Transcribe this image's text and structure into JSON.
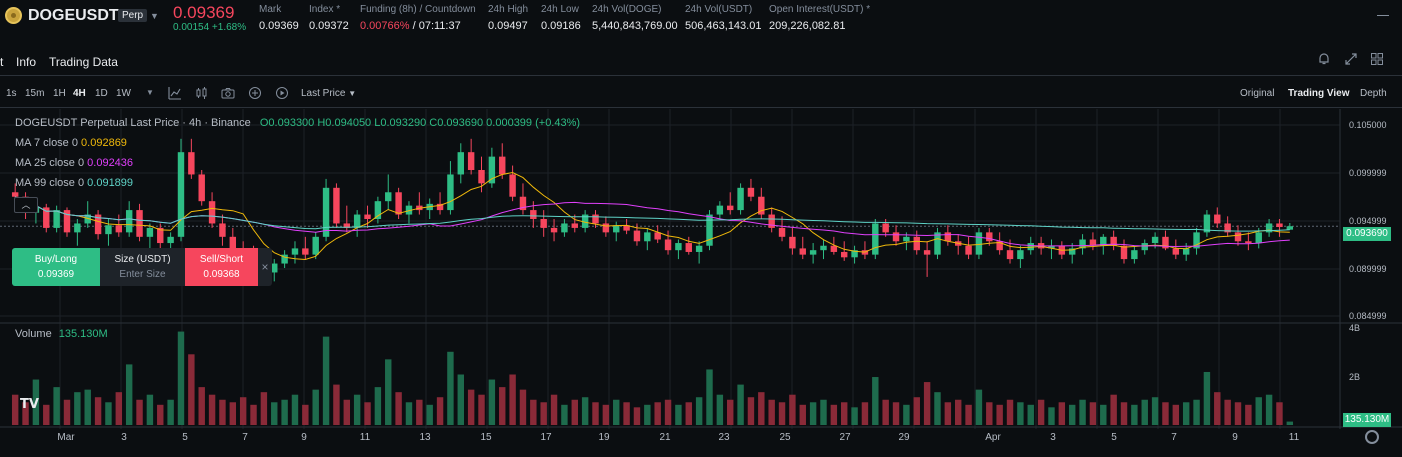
{
  "header": {
    "symbol": "DOGEUSDT",
    "badge": "Perp",
    "last_price": "0.09369",
    "change": "0.00154 +1.68%",
    "stats": [
      {
        "key": "Mark",
        "value": "0.09369"
      },
      {
        "key": "Index",
        "value": "0.09372"
      },
      {
        "key": "Funding (8h) / Countdown",
        "value_red": "0.00766%",
        "value_rest": " / 07:11:37"
      },
      {
        "key": "24h High",
        "value": "0.09497"
      },
      {
        "key": "24h Low",
        "value": "0.09186"
      },
      {
        "key": "24h Vol(DOGE)",
        "value": "5,440,843,769.00"
      },
      {
        "key": "24h Vol(USDT)",
        "value": "506,463,143.01"
      },
      {
        "key": "Open Interest(USDT)",
        "value": "209,226,082.81"
      }
    ],
    "colors": {
      "up": "#2ebd85",
      "down": "#f6465d",
      "ma7": "#f0b90b",
      "ma25": "#e040fb",
      "ma99": "#5fd3c7"
    }
  },
  "tabs": [
    {
      "label": "t"
    },
    {
      "label": "Info"
    },
    {
      "label": "Trading Data"
    }
  ],
  "right_icons": [
    "bell-icon",
    "expand-icon",
    "grid-icon"
  ],
  "toolbar": {
    "intervals": [
      "1s",
      "15m",
      "1H",
      "4H",
      "1D",
      "1W"
    ],
    "active_interval": "4H",
    "tools": [
      "indicator-icon",
      "candle-type-icon",
      "camera-icon",
      "add-icon",
      "replay-icon"
    ],
    "price_source": "Last Price",
    "views": [
      "Original",
      "Trading View",
      "Depth"
    ],
    "active_view": "Trading View"
  },
  "legend": {
    "title": "DOGEUSDT Perpetual Last Price · 4h · Binance",
    "ohlc": "O0.093300 H0.094050 L0.093290 C0.093690 0.000399 (+0.43%)",
    "ma7_label": "MA 7 close 0",
    "ma7_value": "0.092869",
    "ma25_label": "MA 25 close 0",
    "ma25_value": "0.092436",
    "ma99_label": "MA 99 close 0",
    "ma99_value": "0.091899"
  },
  "order": {
    "buy_label": "Buy/Long",
    "buy_price": "0.09369",
    "size_label": "Size (USDT)",
    "size_placeholder": "Enter Size",
    "sell_label": "Sell/Short",
    "sell_price": "0.09368"
  },
  "price_axis": {
    "ticks": [
      "0.105000",
      "0.099999",
      "0.094999",
      "0.089999",
      "0.084999"
    ],
    "current": "0.093690"
  },
  "volume": {
    "label": "Volume",
    "value": "135.130M",
    "ticks": [
      "4B",
      "2B"
    ]
  },
  "dates": [
    "Mar",
    "3",
    "5",
    "7",
    "9",
    "11",
    "13",
    "15",
    "17",
    "19",
    "21",
    "23",
    "25",
    "27",
    "29",
    "Apr",
    "3",
    "5",
    "7",
    "9",
    "11"
  ],
  "chart_data": {
    "type": "candlestick",
    "y_range": [
      0.0835,
      0.1055
    ],
    "volume_range": [
      0,
      4000000000
    ],
    "candles": [
      [
        0.0975,
        0.0985,
        0.0965,
        0.097
      ],
      [
        0.097,
        0.0975,
        0.0945,
        0.0952
      ],
      [
        0.0952,
        0.0965,
        0.094,
        0.0958
      ],
      [
        0.0958,
        0.0962,
        0.093,
        0.0935
      ],
      [
        0.0935,
        0.096,
        0.093,
        0.0955
      ],
      [
        0.0955,
        0.0958,
        0.0925,
        0.093
      ],
      [
        0.093,
        0.0945,
        0.0915,
        0.094
      ],
      [
        0.094,
        0.0965,
        0.0935,
        0.095
      ],
      [
        0.095,
        0.0955,
        0.0922,
        0.0928
      ],
      [
        0.0928,
        0.0945,
        0.0915,
        0.0938
      ],
      [
        0.0938,
        0.095,
        0.0925,
        0.093
      ],
      [
        0.093,
        0.0965,
        0.0925,
        0.0955
      ],
      [
        0.0955,
        0.0962,
        0.092,
        0.0925
      ],
      [
        0.0925,
        0.094,
        0.09,
        0.0935
      ],
      [
        0.0935,
        0.094,
        0.091,
        0.0918
      ],
      [
        0.0918,
        0.093,
        0.0905,
        0.0925
      ],
      [
        0.0925,
        0.1035,
        0.092,
        0.102
      ],
      [
        0.102,
        0.1035,
        0.099,
        0.0995
      ],
      [
        0.0995,
        0.1,
        0.096,
        0.0965
      ],
      [
        0.0965,
        0.0975,
        0.0935,
        0.094
      ],
      [
        0.094,
        0.095,
        0.0915,
        0.0925
      ],
      [
        0.0925,
        0.0935,
        0.0905,
        0.091
      ],
      [
        0.091,
        0.092,
        0.089,
        0.09
      ],
      [
        0.09,
        0.0915,
        0.0885,
        0.0895
      ],
      [
        0.0895,
        0.0905,
        0.0878,
        0.0885
      ],
      [
        0.0885,
        0.09,
        0.0875,
        0.0895
      ],
      [
        0.0895,
        0.091,
        0.089,
        0.0905
      ],
      [
        0.0905,
        0.092,
        0.0895,
        0.0912
      ],
      [
        0.0912,
        0.0925,
        0.09,
        0.0905
      ],
      [
        0.0905,
        0.093,
        0.09,
        0.0925
      ],
      [
        0.0925,
        0.099,
        0.092,
        0.098
      ],
      [
        0.098,
        0.0985,
        0.0935,
        0.094
      ],
      [
        0.094,
        0.096,
        0.093,
        0.0935
      ],
      [
        0.0935,
        0.0955,
        0.0925,
        0.095
      ],
      [
        0.095,
        0.096,
        0.0935,
        0.0945
      ],
      [
        0.0945,
        0.097,
        0.094,
        0.0965
      ],
      [
        0.0965,
        0.0995,
        0.0955,
        0.0975
      ],
      [
        0.0975,
        0.098,
        0.0945,
        0.095
      ],
      [
        0.095,
        0.0965,
        0.094,
        0.096
      ],
      [
        0.096,
        0.0975,
        0.095,
        0.0955
      ],
      [
        0.0955,
        0.0968,
        0.0945,
        0.0962
      ],
      [
        0.0962,
        0.0975,
        0.095,
        0.0955
      ],
      [
        0.0955,
        0.101,
        0.095,
        0.0995
      ],
      [
        0.0995,
        0.103,
        0.0985,
        0.102
      ],
      [
        0.102,
        0.1035,
        0.0995,
        0.1
      ],
      [
        0.1,
        0.1015,
        0.0975,
        0.0985
      ],
      [
        0.0985,
        0.1025,
        0.098,
        0.1015
      ],
      [
        0.1015,
        0.103,
        0.099,
        0.0995
      ],
      [
        0.0995,
        0.1005,
        0.0965,
        0.097
      ],
      [
        0.097,
        0.0985,
        0.095,
        0.0955
      ],
      [
        0.0955,
        0.0965,
        0.0935,
        0.0945
      ],
      [
        0.0945,
        0.0955,
        0.0925,
        0.0935
      ],
      [
        0.0935,
        0.0945,
        0.092,
        0.093
      ],
      [
        0.093,
        0.0945,
        0.0925,
        0.094
      ],
      [
        0.094,
        0.095,
        0.093,
        0.0935
      ],
      [
        0.0935,
        0.0955,
        0.093,
        0.095
      ],
      [
        0.095,
        0.0955,
        0.0935,
        0.094
      ],
      [
        0.094,
        0.0948,
        0.0925,
        0.093
      ],
      [
        0.093,
        0.0942,
        0.092,
        0.0938
      ],
      [
        0.0938,
        0.0945,
        0.0928,
        0.0932
      ],
      [
        0.0932,
        0.094,
        0.0915,
        0.092
      ],
      [
        0.092,
        0.0935,
        0.091,
        0.093
      ],
      [
        0.093,
        0.0938,
        0.0918,
        0.0922
      ],
      [
        0.0922,
        0.0932,
        0.0905,
        0.091
      ],
      [
        0.091,
        0.0922,
        0.09,
        0.0918
      ],
      [
        0.0918,
        0.0925,
        0.0905,
        0.0908
      ],
      [
        0.0908,
        0.092,
        0.0895,
        0.0915
      ],
      [
        0.0915,
        0.0955,
        0.091,
        0.095
      ],
      [
        0.095,
        0.0965,
        0.0945,
        0.096
      ],
      [
        0.096,
        0.0975,
        0.095,
        0.0955
      ],
      [
        0.0955,
        0.0985,
        0.095,
        0.098
      ],
      [
        0.098,
        0.099,
        0.0965,
        0.097
      ],
      [
        0.097,
        0.098,
        0.0945,
        0.095
      ],
      [
        0.095,
        0.0958,
        0.093,
        0.0935
      ],
      [
        0.0935,
        0.0948,
        0.092,
        0.0925
      ],
      [
        0.0925,
        0.0935,
        0.0905,
        0.0912
      ],
      [
        0.0912,
        0.0925,
        0.09,
        0.0905
      ],
      [
        0.0905,
        0.0918,
        0.0895,
        0.091
      ],
      [
        0.091,
        0.0922,
        0.09,
        0.0915
      ],
      [
        0.0915,
        0.0925,
        0.0905,
        0.0908
      ],
      [
        0.0908,
        0.092,
        0.0898,
        0.0902
      ],
      [
        0.0902,
        0.0915,
        0.0895,
        0.091
      ],
      [
        0.091,
        0.092,
        0.09,
        0.0905
      ],
      [
        0.0905,
        0.0945,
        0.09,
        0.094
      ],
      [
        0.094,
        0.0945,
        0.0925,
        0.093
      ],
      [
        0.093,
        0.0938,
        0.0915,
        0.092
      ],
      [
        0.092,
        0.093,
        0.091,
        0.0925
      ],
      [
        0.0925,
        0.0932,
        0.0905,
        0.091
      ],
      [
        0.091,
        0.092,
        0.088,
        0.0905
      ],
      [
        0.0905,
        0.0935,
        0.09,
        0.093
      ],
      [
        0.093,
        0.0938,
        0.0915,
        0.092
      ],
      [
        0.092,
        0.0928,
        0.0905,
        0.0915
      ],
      [
        0.0915,
        0.0925,
        0.09,
        0.0905
      ],
      [
        0.0905,
        0.0935,
        0.09,
        0.093
      ],
      [
        0.093,
        0.0935,
        0.0915,
        0.092
      ],
      [
        0.092,
        0.093,
        0.0905,
        0.091
      ],
      [
        0.091,
        0.0922,
        0.0895,
        0.09
      ],
      [
        0.09,
        0.0915,
        0.089,
        0.091
      ],
      [
        0.091,
        0.0925,
        0.0905,
        0.0918
      ],
      [
        0.0918,
        0.0925,
        0.0905,
        0.0912
      ],
      [
        0.0912,
        0.0922,
        0.09,
        0.0915
      ],
      [
        0.0915,
        0.092,
        0.09,
        0.0905
      ],
      [
        0.0905,
        0.0918,
        0.0895,
        0.0912
      ],
      [
        0.0912,
        0.0928,
        0.0905,
        0.0922
      ],
      [
        0.0922,
        0.093,
        0.091,
        0.0915
      ],
      [
        0.0915,
        0.0928,
        0.0905,
        0.0925
      ],
      [
        0.0925,
        0.0932,
        0.091,
        0.0915
      ],
      [
        0.0915,
        0.0922,
        0.0895,
        0.09
      ],
      [
        0.09,
        0.0915,
        0.0895,
        0.091
      ],
      [
        0.091,
        0.0922,
        0.0905,
        0.0918
      ],
      [
        0.0918,
        0.093,
        0.0912,
        0.0925
      ],
      [
        0.0925,
        0.0932,
        0.091,
        0.0912
      ],
      [
        0.0912,
        0.0922,
        0.09,
        0.0905
      ],
      [
        0.0905,
        0.0918,
        0.0898,
        0.0912
      ],
      [
        0.0912,
        0.0935,
        0.0905,
        0.093
      ],
      [
        0.093,
        0.0955,
        0.0925,
        0.095
      ],
      [
        0.095,
        0.0958,
        0.0935,
        0.094
      ],
      [
        0.094,
        0.0948,
        0.0925,
        0.093
      ],
      [
        0.093,
        0.0938,
        0.0915,
        0.092
      ],
      [
        0.092,
        0.093,
        0.091,
        0.0918
      ],
      [
        0.0918,
        0.0935,
        0.0912,
        0.093
      ],
      [
        0.093,
        0.0945,
        0.0925,
        0.094
      ],
      [
        0.094,
        0.0945,
        0.0925,
        0.0936
      ],
      [
        0.0933,
        0.09405,
        0.09329,
        0.09369
      ]
    ],
    "volumes": [
      1.2,
      0.9,
      1.8,
      0.8,
      1.5,
      1.0,
      1.3,
      1.4,
      1.1,
      0.9,
      1.3,
      2.4,
      1.0,
      1.2,
      0.8,
      1.0,
      3.7,
      2.8,
      1.5,
      1.2,
      1.0,
      0.9,
      1.1,
      0.8,
      1.3,
      0.9,
      1.0,
      1.2,
      0.8,
      1.4,
      3.5,
      1.6,
      1.0,
      1.2,
      0.9,
      1.5,
      2.6,
      1.3,
      0.9,
      1.0,
      0.8,
      1.1,
      2.9,
      2.0,
      1.4,
      1.2,
      1.8,
      1.5,
      2.0,
      1.4,
      1.0,
      0.9,
      1.2,
      0.8,
      1.0,
      1.1,
      0.9,
      0.8,
      1.0,
      0.9,
      0.7,
      0.8,
      0.9,
      1.0,
      0.8,
      0.9,
      1.1,
      2.2,
      1.2,
      1.0,
      1.6,
      1.1,
      1.3,
      1.0,
      0.9,
      1.2,
      0.8,
      0.9,
      1.0,
      0.8,
      0.9,
      0.7,
      0.9,
      1.9,
      1.0,
      0.9,
      0.8,
      1.1,
      1.7,
      1.3,
      0.9,
      1.0,
      0.8,
      1.4,
      0.9,
      0.8,
      1.0,
      0.9,
      0.8,
      1.0,
      0.7,
      0.9,
      0.8,
      1.0,
      0.9,
      0.8,
      1.2,
      0.9,
      0.8,
      1.0,
      1.1,
      0.9,
      0.8,
      0.9,
      1.0,
      2.1,
      1.3,
      1.0,
      0.9,
      0.8,
      1.1,
      1.2,
      0.9,
      0.135
    ],
    "volume_unit": "B"
  }
}
